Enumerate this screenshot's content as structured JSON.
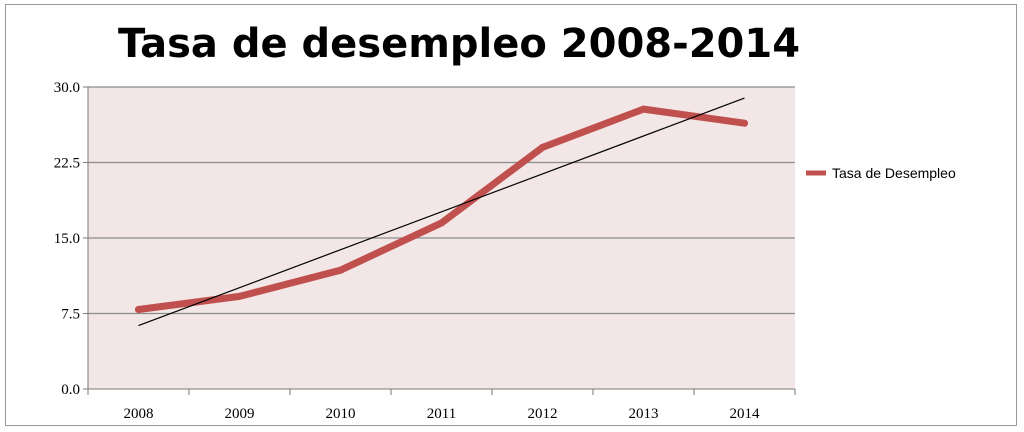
{
  "chart_data": {
    "type": "line",
    "title": "Tasa de desempleo 2008-2014",
    "xlabel": "",
    "ylabel": "",
    "categories": [
      "2008",
      "2009",
      "2010",
      "2011",
      "2012",
      "2013",
      "2014"
    ],
    "series": [
      {
        "name": "Tasa de Desempleo",
        "values": [
          7.9,
          9.2,
          11.8,
          16.5,
          24.0,
          27.8,
          26.4
        ]
      }
    ],
    "trendline": {
      "start": 6.3,
      "end": 28.9
    },
    "yticks": [
      "0.0",
      "7.5",
      "15.0",
      "22.5",
      "30.0"
    ],
    "ylim": [
      0,
      30
    ],
    "grid": true,
    "legend": "right",
    "colors": {
      "series": "#c0504d",
      "trendline": "#000000",
      "plot_background": "#f2e6e6",
      "gridline": "#8c8c8c"
    }
  }
}
